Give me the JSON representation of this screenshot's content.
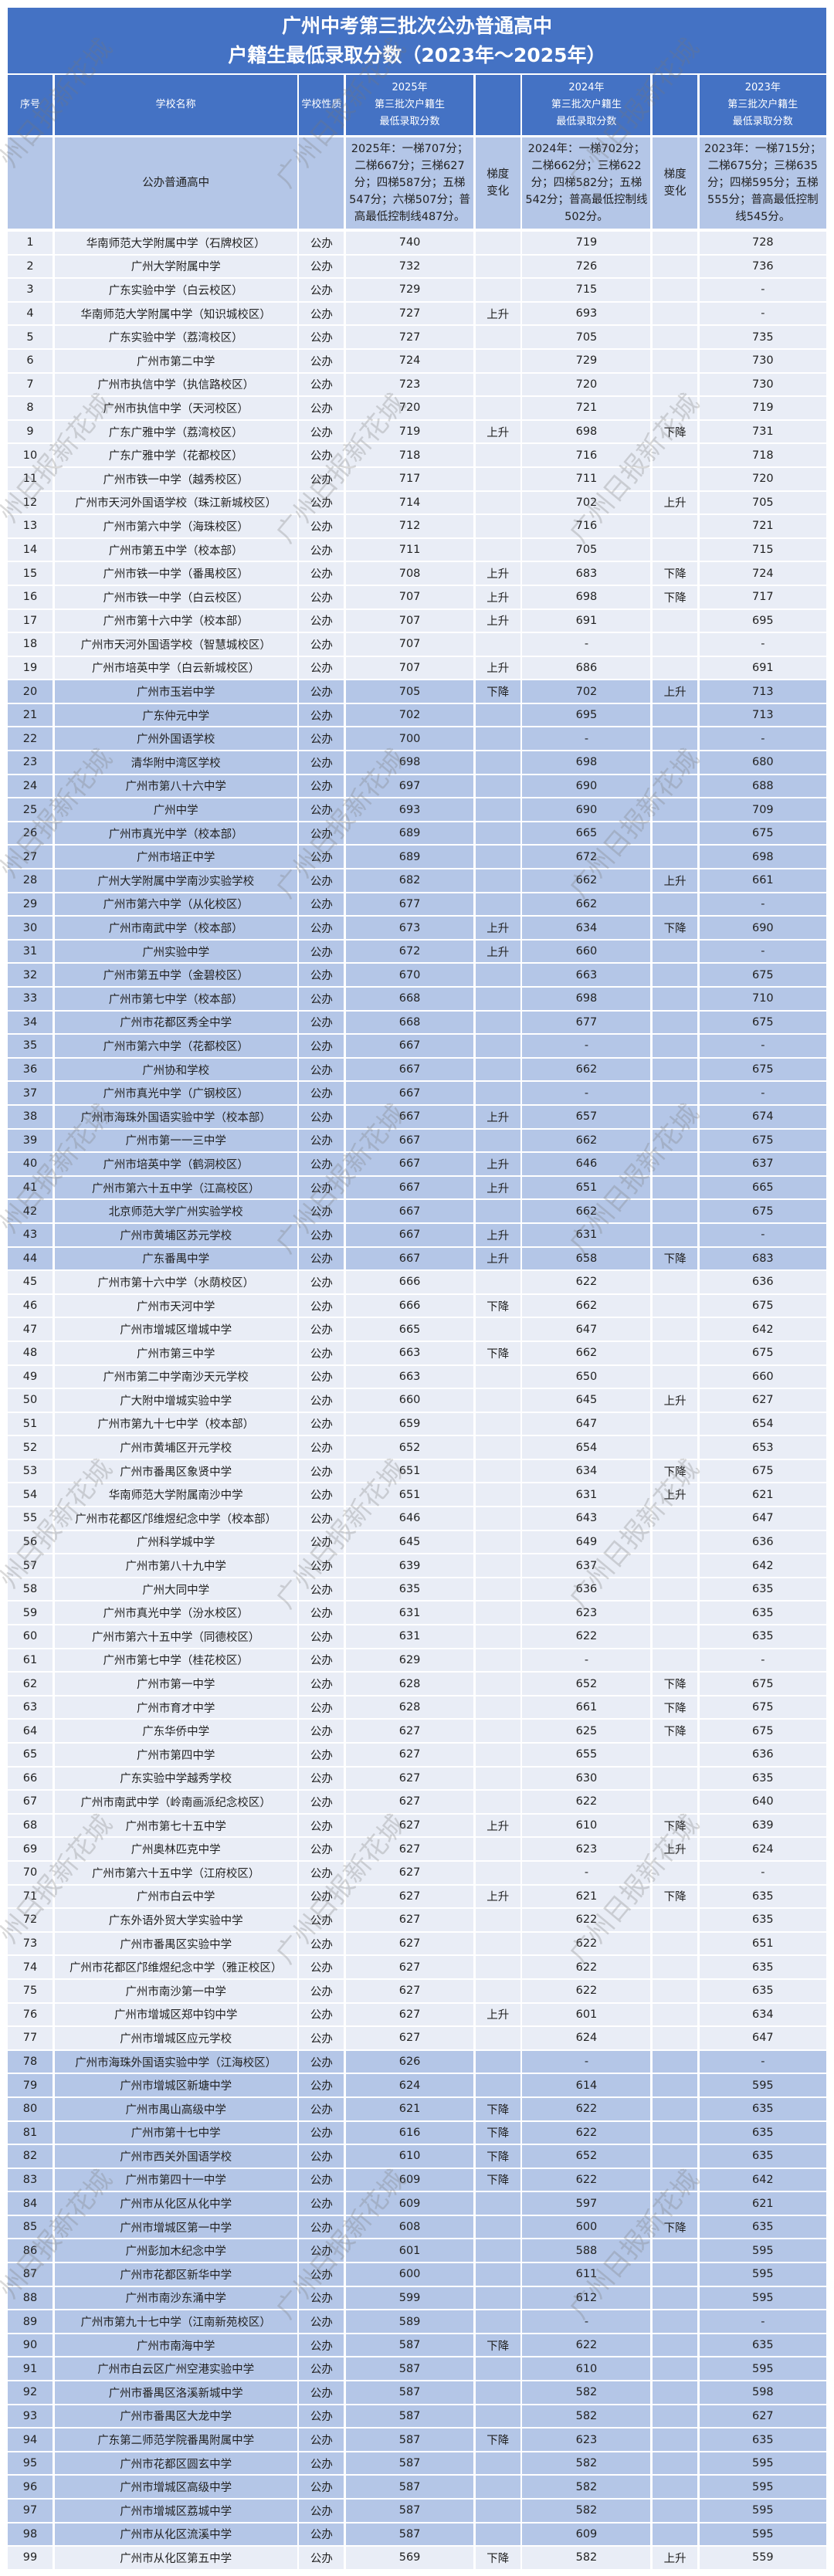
{
  "title": {
    "line1": "广州中考第三批次公办普通高中",
    "line2": "户籍生最低录取分数（2023年～2025年）"
  },
  "watermark": "广州日报新花城",
  "colors": {
    "header": "#4472c4",
    "highlight_row": "#b4c6e7",
    "normal_row": "#e9edf6"
  },
  "columns": [
    "序号",
    "学校名称",
    "学校性质",
    "2025年\n第三批次户籍生\n最低录取分数",
    "",
    "2024年\n第三批次户籍生\n最低录取分数",
    "",
    "2023年\n第三批次户籍生\n最低录取分数"
  ],
  "summary": {
    "name": "公办普通高中",
    "y2025": "2025年：一梯707分；二梯667分；三梯627分；四梯587分；五梯547分；六梯507分；普高最低控制线487分。",
    "trend1": "梯度变化",
    "y2024": "2024年：一梯702分；二梯662分；三梯622分；四梯582分；五梯542分；普高最低控制线502分。",
    "trend2": "梯度变化",
    "y2023": "2023年：一梯715分；二梯675分；三梯635分；四梯595分；五梯555分；普高最低控制线545分。"
  },
  "rows": [
    [
      "1",
      "华南师范大学附属中学（石牌校区）",
      "公办",
      "740",
      "",
      "719",
      "",
      "728",
      false
    ],
    [
      "2",
      "广州大学附属中学",
      "公办",
      "732",
      "",
      "726",
      "",
      "736",
      false
    ],
    [
      "3",
      "广东实验中学（白云校区）",
      "公办",
      "729",
      "",
      "715",
      "",
      "-",
      false
    ],
    [
      "4",
      "华南师范大学附属中学（知识城校区）",
      "公办",
      "727",
      "上升",
      "693",
      "",
      "-",
      false
    ],
    [
      "5",
      "广东实验中学（荔湾校区）",
      "公办",
      "727",
      "",
      "705",
      "",
      "735",
      false
    ],
    [
      "6",
      "广州市第二中学",
      "公办",
      "724",
      "",
      "729",
      "",
      "730",
      false
    ],
    [
      "7",
      "广州市执信中学（执信路校区）",
      "公办",
      "723",
      "",
      "720",
      "",
      "730",
      false
    ],
    [
      "8",
      "广州市执信中学（天河校区）",
      "公办",
      "720",
      "",
      "721",
      "",
      "719",
      false
    ],
    [
      "9",
      "广东广雅中学（荔湾校区）",
      "公办",
      "719",
      "上升",
      "698",
      "下降",
      "731",
      false
    ],
    [
      "10",
      "广东广雅中学（花都校区）",
      "公办",
      "718",
      "",
      "716",
      "",
      "718",
      false
    ],
    [
      "11",
      "广州市铁一中学（越秀校区）",
      "公办",
      "717",
      "",
      "711",
      "",
      "720",
      false
    ],
    [
      "12",
      "广州市天河外国语学校（珠江新城校区）",
      "公办",
      "714",
      "",
      "702",
      "上升",
      "705",
      false
    ],
    [
      "13",
      "广州市第六中学（海珠校区）",
      "公办",
      "712",
      "",
      "716",
      "",
      "721",
      false
    ],
    [
      "14",
      "广州市第五中学（校本部）",
      "公办",
      "711",
      "",
      "705",
      "",
      "715",
      false
    ],
    [
      "15",
      "广州市铁一中学（番禺校区）",
      "公办",
      "708",
      "上升",
      "683",
      "下降",
      "724",
      false
    ],
    [
      "16",
      "广州市铁一中学（白云校区）",
      "公办",
      "707",
      "上升",
      "698",
      "下降",
      "717",
      false
    ],
    [
      "17",
      "广州市第十六中学（校本部）",
      "公办",
      "707",
      "上升",
      "691",
      "",
      "695",
      false
    ],
    [
      "18",
      "广州市天河外国语学校（智慧城校区）",
      "公办",
      "707",
      "",
      "-",
      "",
      "-",
      false
    ],
    [
      "19",
      "广州市培英中学（白云新城校区）",
      "公办",
      "707",
      "上升",
      "686",
      "",
      "691",
      false
    ],
    [
      "20",
      "广州市玉岩中学",
      "公办",
      "705",
      "下降",
      "702",
      "上升",
      "713",
      true
    ],
    [
      "21",
      "广东仲元中学",
      "公办",
      "702",
      "",
      "695",
      "",
      "713",
      true
    ],
    [
      "22",
      "广州外国语学校",
      "公办",
      "700",
      "",
      "-",
      "",
      "-",
      true
    ],
    [
      "23",
      "清华附中湾区学校",
      "公办",
      "698",
      "",
      "698",
      "",
      "680",
      true
    ],
    [
      "24",
      "广州市第八十六中学",
      "公办",
      "697",
      "",
      "690",
      "",
      "688",
      true
    ],
    [
      "25",
      "广州中学",
      "公办",
      "693",
      "",
      "690",
      "",
      "709",
      true
    ],
    [
      "26",
      "广州市真光中学（校本部）",
      "公办",
      "689",
      "",
      "665",
      "",
      "675",
      true
    ],
    [
      "27",
      "广州市培正中学",
      "公办",
      "689",
      "",
      "672",
      "",
      "698",
      true
    ],
    [
      "28",
      "广州大学附属中学南沙实验学校",
      "公办",
      "682",
      "",
      "662",
      "上升",
      "661",
      true
    ],
    [
      "29",
      "广州市第六中学（从化校区）",
      "公办",
      "677",
      "",
      "662",
      "",
      "-",
      true
    ],
    [
      "30",
      "广州市南武中学（校本部）",
      "公办",
      "673",
      "上升",
      "634",
      "下降",
      "690",
      true
    ],
    [
      "31",
      "广州实验中学",
      "公办",
      "672",
      "上升",
      "660",
      "",
      "-",
      true
    ],
    [
      "32",
      "广州市第五中学（金碧校区）",
      "公办",
      "670",
      "",
      "663",
      "",
      "675",
      true
    ],
    [
      "33",
      "广州市第七中学（校本部）",
      "公办",
      "668",
      "",
      "698",
      "",
      "710",
      true
    ],
    [
      "34",
      "广州市花都区秀全中学",
      "公办",
      "668",
      "",
      "677",
      "",
      "675",
      true
    ],
    [
      "35",
      "广州市第六中学（花都校区）",
      "公办",
      "667",
      "",
      "-",
      "",
      "-",
      true
    ],
    [
      "36",
      "广州协和学校",
      "公办",
      "667",
      "",
      "662",
      "",
      "675",
      true
    ],
    [
      "37",
      "广州市真光中学（广钢校区）",
      "公办",
      "667",
      "",
      "-",
      "",
      "-",
      true
    ],
    [
      "38",
      "广州市海珠外国语实验中学（校本部）",
      "公办",
      "667",
      "上升",
      "657",
      "",
      "674",
      true
    ],
    [
      "39",
      "广州市第一一三中学",
      "公办",
      "667",
      "",
      "662",
      "",
      "675",
      true
    ],
    [
      "40",
      "广州市培英中学（鹤洞校区）",
      "公办",
      "667",
      "上升",
      "646",
      "",
      "637",
      true
    ],
    [
      "41",
      "广州市第六十五中学（江高校区）",
      "公办",
      "667",
      "上升",
      "651",
      "",
      "665",
      true
    ],
    [
      "42",
      "北京师范大学广州实验学校",
      "公办",
      "667",
      "",
      "662",
      "",
      "675",
      true
    ],
    [
      "43",
      "广州市黄埔区苏元学校",
      "公办",
      "667",
      "上升",
      "631",
      "",
      "-",
      true
    ],
    [
      "44",
      "广东番禺中学",
      "公办",
      "667",
      "上升",
      "658",
      "下降",
      "683",
      true
    ],
    [
      "45",
      "广州市第十六中学（水荫校区）",
      "公办",
      "666",
      "",
      "622",
      "",
      "636",
      false
    ],
    [
      "46",
      "广州市天河中学",
      "公办",
      "666",
      "下降",
      "662",
      "",
      "675",
      false
    ],
    [
      "47",
      "广州市增城区增城中学",
      "公办",
      "665",
      "",
      "647",
      "",
      "642",
      false
    ],
    [
      "48",
      "广州市第三中学",
      "公办",
      "663",
      "下降",
      "662",
      "",
      "675",
      false
    ],
    [
      "49",
      "广州市第二中学南沙天元学校",
      "公办",
      "663",
      "",
      "650",
      "",
      "660",
      false
    ],
    [
      "50",
      "广大附中增城实验中学",
      "公办",
      "660",
      "",
      "645",
      "上升",
      "627",
      false
    ],
    [
      "51",
      "广州市第九十七中学（校本部）",
      "公办",
      "659",
      "",
      "647",
      "",
      "654",
      false
    ],
    [
      "52",
      "广州市黄埔区开元学校",
      "公办",
      "652",
      "",
      "654",
      "",
      "653",
      false
    ],
    [
      "53",
      "广州市番禺区象贤中学",
      "公办",
      "651",
      "",
      "634",
      "下降",
      "675",
      false
    ],
    [
      "54",
      "华南师范大学附属南沙中学",
      "公办",
      "651",
      "",
      "631",
      "上升",
      "621",
      false
    ],
    [
      "55",
      "广州市花都区邝维煜纪念中学（校本部）",
      "公办",
      "646",
      "",
      "643",
      "",
      "647",
      false
    ],
    [
      "56",
      "广州科学城中学",
      "公办",
      "645",
      "",
      "649",
      "",
      "636",
      false
    ],
    [
      "57",
      "广州市第八十九中学",
      "公办",
      "639",
      "",
      "637",
      "",
      "642",
      false
    ],
    [
      "58",
      "广州大同中学",
      "公办",
      "635",
      "",
      "636",
      "",
      "635",
      false
    ],
    [
      "59",
      "广州市真光中学（汾水校区）",
      "公办",
      "631",
      "",
      "623",
      "",
      "635",
      false
    ],
    [
      "60",
      "广州市第六十五中学（同德校区）",
      "公办",
      "631",
      "",
      "622",
      "",
      "635",
      false
    ],
    [
      "61",
      "广州市第七中学（桂花校区）",
      "公办",
      "629",
      "",
      "-",
      "",
      "-",
      false
    ],
    [
      "62",
      "广州市第一中学",
      "公办",
      "628",
      "",
      "652",
      "下降",
      "675",
      false
    ],
    [
      "63",
      "广州市育才中学",
      "公办",
      "628",
      "",
      "661",
      "下降",
      "675",
      false
    ],
    [
      "64",
      "广东华侨中学",
      "公办",
      "627",
      "",
      "625",
      "下降",
      "675",
      false
    ],
    [
      "65",
      "广州市第四中学",
      "公办",
      "627",
      "",
      "655",
      "",
      "636",
      false
    ],
    [
      "66",
      "广东实验中学越秀学校",
      "公办",
      "627",
      "",
      "630",
      "",
      "635",
      false
    ],
    [
      "67",
      "广州市南武中学（岭南画派纪念校区）",
      "公办",
      "627",
      "",
      "622",
      "",
      "640",
      false
    ],
    [
      "68",
      "广州市第七十五中学",
      "公办",
      "627",
      "上升",
      "610",
      "下降",
      "639",
      false
    ],
    [
      "69",
      "广州奥林匹克中学",
      "公办",
      "627",
      "",
      "623",
      "上升",
      "624",
      false
    ],
    [
      "70",
      "广州市第六十五中学（江府校区）",
      "公办",
      "627",
      "",
      "-",
      "",
      "-",
      false
    ],
    [
      "71",
      "广州市白云中学",
      "公办",
      "627",
      "上升",
      "621",
      "下降",
      "635",
      false
    ],
    [
      "72",
      "广东外语外贸大学实验中学",
      "公办",
      "627",
      "",
      "622",
      "",
      "635",
      false
    ],
    [
      "73",
      "广州市番禺区实验中学",
      "公办",
      "627",
      "",
      "622",
      "",
      "651",
      false
    ],
    [
      "74",
      "广州市花都区邝维煜纪念中学（雅正校区）",
      "公办",
      "627",
      "",
      "622",
      "",
      "635",
      false
    ],
    [
      "75",
      "广州市南沙第一中学",
      "公办",
      "627",
      "",
      "622",
      "",
      "635",
      false
    ],
    [
      "76",
      "广州市增城区郑中钧中学",
      "公办",
      "627",
      "上升",
      "601",
      "",
      "634",
      false
    ],
    [
      "77",
      "广州市增城区应元学校",
      "公办",
      "627",
      "",
      "624",
      "",
      "647",
      false
    ],
    [
      "78",
      "广州市海珠外国语实验中学（江海校区）",
      "公办",
      "626",
      "",
      "-",
      "",
      "-",
      true
    ],
    [
      "79",
      "广州市增城区新塘中学",
      "公办",
      "624",
      "",
      "614",
      "",
      "595",
      true
    ],
    [
      "80",
      "广州市禺山高级中学",
      "公办",
      "621",
      "下降",
      "622",
      "",
      "635",
      true
    ],
    [
      "81",
      "广州市第十七中学",
      "公办",
      "616",
      "下降",
      "622",
      "",
      "635",
      true
    ],
    [
      "82",
      "广州市西关外国语学校",
      "公办",
      "610",
      "下降",
      "652",
      "",
      "635",
      true
    ],
    [
      "83",
      "广州市第四十一中学",
      "公办",
      "609",
      "下降",
      "622",
      "",
      "642",
      true
    ],
    [
      "84",
      "广州市从化区从化中学",
      "公办",
      "609",
      "",
      "597",
      "",
      "621",
      true
    ],
    [
      "85",
      "广州市增城区第一中学",
      "公办",
      "608",
      "",
      "600",
      "下降",
      "635",
      true
    ],
    [
      "86",
      "广州彭加木纪念中学",
      "公办",
      "601",
      "",
      "588",
      "",
      "595",
      true
    ],
    [
      "87",
      "广州市花都区新华中学",
      "公办",
      "600",
      "",
      "611",
      "",
      "595",
      true
    ],
    [
      "88",
      "广州市南沙东涌中学",
      "公办",
      "599",
      "",
      "612",
      "",
      "595",
      true
    ],
    [
      "89",
      "广州市第九十七中学（江南新苑校区）",
      "公办",
      "589",
      "",
      "-",
      "",
      "-",
      true
    ],
    [
      "90",
      "广州市南海中学",
      "公办",
      "587",
      "下降",
      "622",
      "",
      "635",
      true
    ],
    [
      "91",
      "广州市白云区广州空港实验中学",
      "公办",
      "587",
      "",
      "610",
      "",
      "595",
      true
    ],
    [
      "92",
      "广州市番禺区洛溪新城中学",
      "公办",
      "587",
      "",
      "582",
      "",
      "598",
      true
    ],
    [
      "93",
      "广州市番禺区大龙中学",
      "公办",
      "587",
      "",
      "582",
      "",
      "627",
      true
    ],
    [
      "94",
      "广东第二师范学院番禺附属中学",
      "公办",
      "587",
      "下降",
      "623",
      "",
      "635",
      true
    ],
    [
      "95",
      "广州市花都区圆玄中学",
      "公办",
      "587",
      "",
      "582",
      "",
      "595",
      true
    ],
    [
      "96",
      "广州市增城区高级中学",
      "公办",
      "587",
      "",
      "582",
      "",
      "595",
      true
    ],
    [
      "97",
      "广州市增城区荔城中学",
      "公办",
      "587",
      "",
      "582",
      "",
      "595",
      true
    ],
    [
      "98",
      "广州市从化区流溪中学",
      "公办",
      "587",
      "",
      "609",
      "",
      "595",
      true
    ],
    [
      "99",
      "广州市从化区第五中学",
      "公办",
      "569",
      "下降",
      "582",
      "上升",
      "559",
      false
    ]
  ]
}
